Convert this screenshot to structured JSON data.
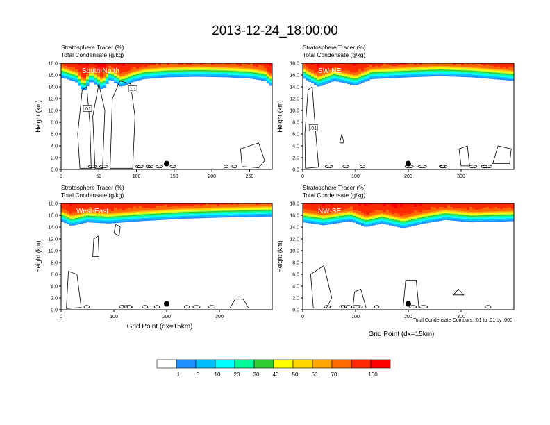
{
  "figure_title": "2013-12-24_18:00:00",
  "panel_labels": {
    "tracer": "Stratosphere Tracer",
    "tracer_unit": "(%)",
    "condensate": "Total Condensate",
    "condensate_unit": "(g/kg)"
  },
  "ylabel": "Height (km)",
  "xlabel": "Grid Point (dx=15km)",
  "contour_note": "Total Condensate Contours: .01 to .01 by .000",
  "contour_label": ".01",
  "colorbar": {
    "levels": [
      "1",
      "5",
      "10",
      "20",
      "30",
      "40",
      "50",
      "60",
      "70",
      "100"
    ],
    "colors": [
      "#ffffff",
      "#1e90ff",
      "#00bfff",
      "#00ffff",
      "#00fa9a",
      "#32cd32",
      "#adff2f",
      "#ffff00",
      "#ffd700",
      "#ffa500",
      "#ff6a00",
      "#ff2a00",
      "#ff0000"
    ]
  },
  "colors": {
    "frame": "#000000",
    "contour": "#000000",
    "marker": "#000000"
  },
  "chart_data": [
    {
      "type": "heatmap",
      "name": "South-North",
      "xlim": [
        0,
        280
      ],
      "ylim": [
        0,
        18
      ],
      "xticks": [
        0,
        50,
        100,
        150,
        200,
        250
      ],
      "yticks": [
        "0.0",
        "2.0",
        "4.0",
        "6.0",
        "8.0",
        "10.0",
        "12.0",
        "14.0",
        "16.0",
        "18.0"
      ],
      "tropopause_km": [
        [
          0,
          15.6
        ],
        [
          20,
          14.8
        ],
        [
          30,
          13.2
        ],
        [
          40,
          15.0
        ],
        [
          55,
          13.5
        ],
        [
          65,
          15.2
        ],
        [
          80,
          14.0
        ],
        [
          95,
          14.8
        ],
        [
          110,
          15.3
        ],
        [
          140,
          15.6
        ],
        [
          180,
          15.7
        ],
        [
          220,
          15.6
        ],
        [
          250,
          15.4
        ],
        [
          270,
          15.0
        ],
        [
          280,
          14.0
        ]
      ],
      "marker": {
        "x": 140,
        "y": 1.0
      },
      "contour_label_positions": [
        {
          "x": 35,
          "y": 10.3
        },
        {
          "x": 95,
          "y": 13.6
        }
      ]
    },
    {
      "type": "heatmap",
      "name": "SW-NE",
      "xlim": [
        0,
        400
      ],
      "ylim": [
        0,
        18
      ],
      "xticks": [
        0,
        100,
        200,
        300
      ],
      "yticks": [
        "0.0",
        "2.0",
        "4.0",
        "6.0",
        "8.0",
        "10.0",
        "12.0",
        "14.0",
        "16.0",
        "18.0"
      ],
      "tropopause_km": [
        [
          0,
          15.5
        ],
        [
          30,
          14.0
        ],
        [
          60,
          15.0
        ],
        [
          100,
          14.2
        ],
        [
          130,
          15.3
        ],
        [
          200,
          15.6
        ],
        [
          260,
          15.8
        ],
        [
          320,
          15.6
        ],
        [
          360,
          15.3
        ],
        [
          400,
          15.0
        ]
      ],
      "marker": {
        "x": 200,
        "y": 1.0
      },
      "contour_label_positions": [
        {
          "x": 20,
          "y": 7.0
        }
      ]
    },
    {
      "type": "heatmap",
      "name": "West-East",
      "xlim": [
        0,
        400
      ],
      "ylim": [
        0,
        18
      ],
      "xticks": [
        0,
        100,
        200,
        300
      ],
      "yticks": [
        "0.0",
        "2.0",
        "4.0",
        "6.0",
        "8.0",
        "10.0",
        "12.0",
        "14.0",
        "16.0",
        "18.0"
      ],
      "tropopause_km": [
        [
          0,
          15.0
        ],
        [
          20,
          14.2
        ],
        [
          50,
          14.8
        ],
        [
          90,
          14.6
        ],
        [
          150,
          15.0
        ],
        [
          230,
          15.4
        ],
        [
          300,
          15.6
        ],
        [
          400,
          15.8
        ]
      ],
      "marker": {
        "x": 200,
        "y": 1.0
      },
      "contour_label_positions": []
    },
    {
      "type": "heatmap",
      "name": "NW-SE",
      "xlim": [
        0,
        400
      ],
      "ylim": [
        0,
        18
      ],
      "xticks": [
        0,
        100,
        200,
        300
      ],
      "yticks": [
        "0.0",
        "2.0",
        "4.0",
        "6.0",
        "8.0",
        "10.0",
        "12.0",
        "14.0",
        "16.0",
        "18.0"
      ],
      "tropopause_km": [
        [
          0,
          14.8
        ],
        [
          40,
          14.3
        ],
        [
          90,
          15.0
        ],
        [
          120,
          14.0
        ],
        [
          150,
          14.6
        ],
        [
          190,
          13.8
        ],
        [
          230,
          14.6
        ],
        [
          270,
          15.2
        ],
        [
          320,
          14.8
        ],
        [
          400,
          15.0
        ]
      ],
      "marker": {
        "x": 200,
        "y": 1.0
      },
      "contour_label_positions": []
    }
  ]
}
